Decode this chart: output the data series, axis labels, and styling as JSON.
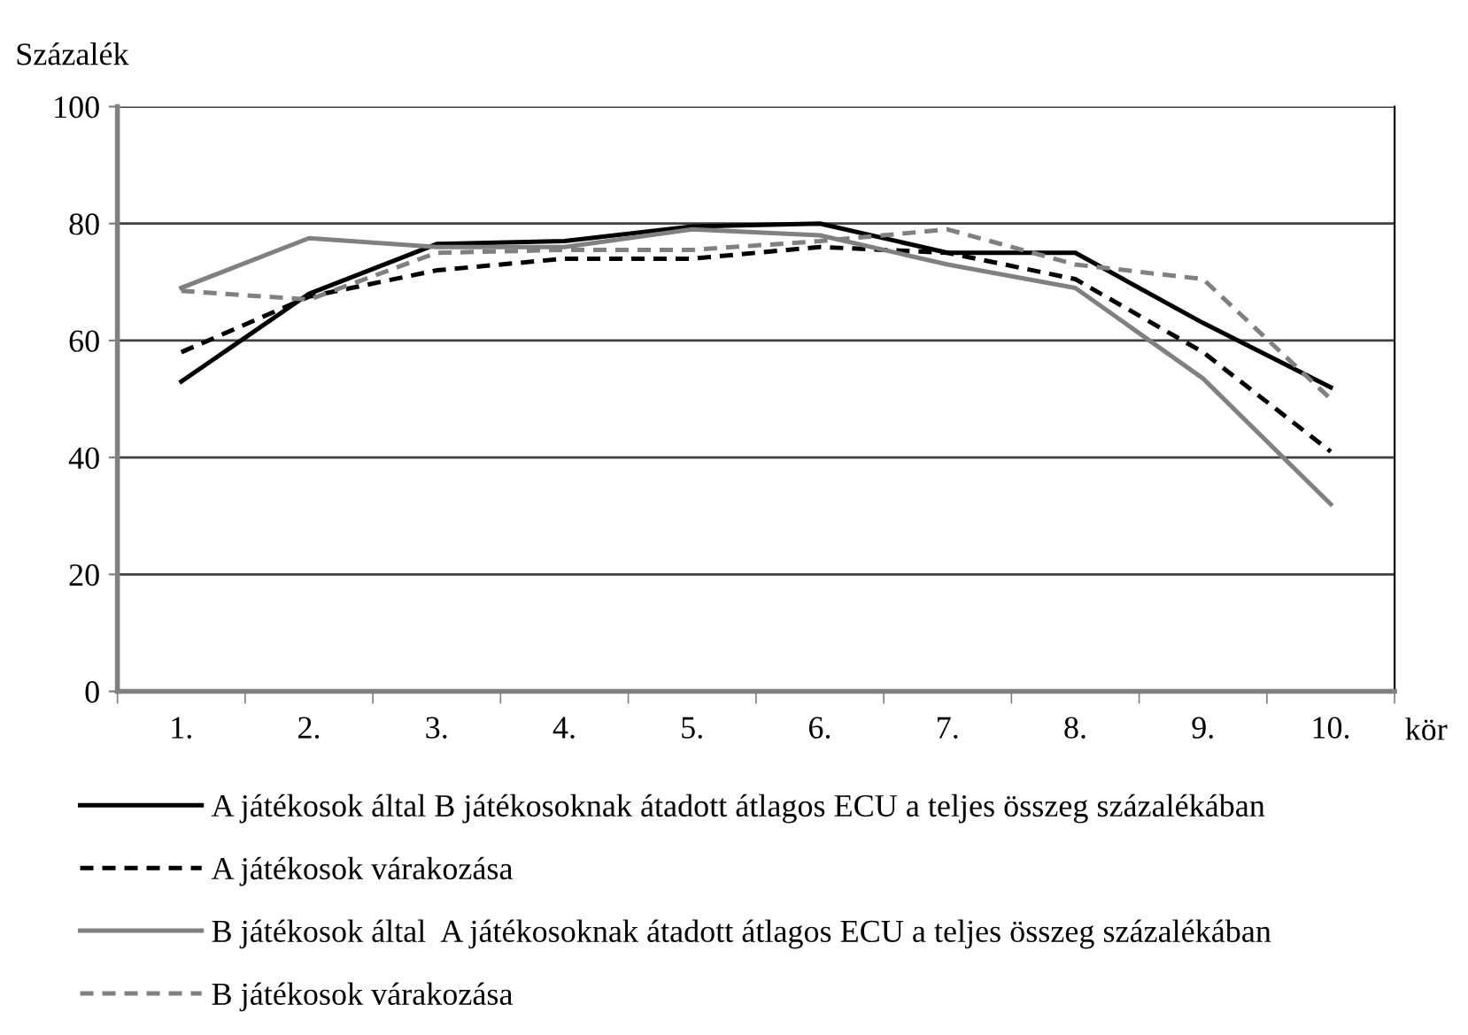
{
  "chart_data": {
    "type": "line",
    "ylabel": "Százalék",
    "xlabel": "kör",
    "categories": [
      "1.",
      "2.",
      "3.",
      "4.",
      "5.",
      "6.",
      "7.",
      "8.",
      "9.",
      "10."
    ],
    "ylim": [
      0,
      100
    ],
    "yticks": [
      0,
      20,
      40,
      60,
      80,
      100
    ],
    "grid": "y",
    "legend": "bottom",
    "series": [
      {
        "name": "A játékosok által B játékosoknak átadott átlagos ECU a teljes összeg százalékában",
        "color": "#000000",
        "line_style": "solid",
        "values": [
          53,
          68,
          76.5,
          77,
          79.5,
          80,
          75,
          75,
          63,
          52
        ]
      },
      {
        "name": "A játékosok várakozása",
        "color": "#000000",
        "line_style": "dashed",
        "values": [
          58,
          67.5,
          72,
          74,
          74,
          76,
          75,
          70.5,
          58,
          41
        ]
      },
      {
        "name": "B játékosok által  A játékosoknak átadott átlagos ECU a teljes összeg százalékában",
        "color": "#808080",
        "line_style": "solid",
        "values": [
          69,
          77.5,
          76,
          76,
          79,
          78,
          73,
          69,
          53.5,
          32
        ]
      },
      {
        "name": "B játékosok várakozása",
        "color": "#808080",
        "line_style": "dashed",
        "values": [
          68.5,
          67,
          75,
          75.5,
          75.5,
          77,
          79,
          73,
          70.5,
          50
        ]
      }
    ]
  }
}
